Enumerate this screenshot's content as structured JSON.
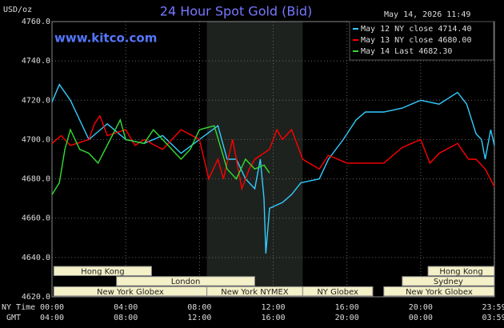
{
  "chart_data": {
    "type": "line",
    "title": "24 Hour Spot Gold (Bid)",
    "timestamp": "May 14, 2026 11:49",
    "y_label": "USD/oz",
    "source": "www.kitco.com",
    "x_label": "NY Time",
    "x2_label": "GMT",
    "xlim": [
      0,
      24
    ],
    "xticks": [
      {
        "value": 0,
        "label": "00:00"
      },
      {
        "value": 4,
        "label": "04:00"
      },
      {
        "value": 8,
        "label": "08:00"
      },
      {
        "value": 12,
        "label": "12:00"
      },
      {
        "value": 16,
        "label": "16:00"
      },
      {
        "value": 20,
        "label": "20:00"
      },
      {
        "value": 23.98,
        "label": "23:59"
      }
    ],
    "x2ticks": [
      {
        "value": 0,
        "label": "04:00"
      },
      {
        "value": 4,
        "label": "08:00"
      },
      {
        "value": 8,
        "label": "12:00"
      },
      {
        "value": 12,
        "label": "16:00"
      },
      {
        "value": 16,
        "label": "20:00"
      },
      {
        "value": 20,
        "label": "00:00"
      },
      {
        "value": 23.98,
        "label": "03:59"
      }
    ],
    "ylim": [
      4620,
      4760
    ],
    "yticks": [
      {
        "value": 4620,
        "label": "4620.0"
      },
      {
        "value": 4640,
        "label": "4640.0"
      },
      {
        "value": 4660,
        "label": "4660.0"
      },
      {
        "value": 4680,
        "label": "4680.0"
      },
      {
        "value": 4700,
        "label": "4700.0"
      },
      {
        "value": 4720,
        "label": "4720.0"
      },
      {
        "value": 4740,
        "label": "4740.0"
      },
      {
        "value": 4760,
        "label": "4760.0"
      }
    ],
    "grid": true,
    "legend": "top-right",
    "sessions": [
      {
        "label": "Hong Kong",
        "start": 0.1,
        "end": 5.4
      },
      {
        "label": "London",
        "start": 3.5,
        "end": 11
      },
      {
        "label": "New York Globex",
        "start": 0.1,
        "end": 8.4
      },
      {
        "label": "New York NYMEX",
        "start": 8.4,
        "end": 13.6
      },
      {
        "label": "NY Globex",
        "start": 13.6,
        "end": 17.4
      },
      {
        "label": "Hong Kong",
        "start": 20.4,
        "end": 24
      },
      {
        "label": "Sydney",
        "start": 19,
        "end": 24
      },
      {
        "label": "New York Globex",
        "start": 18,
        "end": 24
      }
    ],
    "series": [
      {
        "name": "May 12 NY close 4714.40",
        "color": "#33ccff",
        "x": [
          0,
          0.4,
          1,
          2,
          3,
          4,
          5,
          6,
          7,
          8,
          9,
          9.5,
          10,
          10.5,
          11,
          11.3,
          11.5,
          11.6,
          11.8,
          12.5,
          13,
          13.5,
          14.5,
          15,
          15.8,
          16.5,
          17,
          18,
          19,
          20,
          21,
          22,
          22.5,
          23,
          23.3,
          23.5,
          23.8,
          24
        ],
        "values": [
          4719,
          4728,
          4720,
          4700,
          4708,
          4700,
          4698,
          4702,
          4693,
          4700,
          4707,
          4690,
          4690,
          4680,
          4675,
          4690,
          4670,
          4642,
          4665,
          4668,
          4672,
          4678,
          4680,
          4690,
          4700,
          4710,
          4714,
          4714,
          4716,
          4720,
          4718,
          4724,
          4718,
          4703,
          4700,
          4690,
          4705,
          4697
        ]
      },
      {
        "name": "May 13 NY close 4680.00",
        "color": "#ff0000",
        "x": [
          0,
          0.5,
          1,
          2,
          2.3,
          2.6,
          3,
          4,
          4.5,
          5,
          6,
          7,
          8,
          8.5,
          9,
          9.3,
          9.8,
          10.3,
          10.7,
          11,
          11.8,
          12.2,
          12.5,
          13,
          13.6,
          14.5,
          15,
          16,
          18,
          19,
          20,
          20.5,
          21,
          22,
          22.6,
          23,
          23.5,
          24
        ],
        "values": [
          4698,
          4702,
          4697,
          4700,
          4708,
          4712,
          4702,
          4705,
          4697,
          4700,
          4695,
          4705,
          4700,
          4680,
          4690,
          4680,
          4700,
          4675,
          4685,
          4690,
          4695,
          4705,
          4700,
          4705,
          4690,
          4685,
          4692,
          4688,
          4688,
          4696,
          4700,
          4688,
          4693,
          4698,
          4690,
          4690,
          4685,
          4676
        ]
      },
      {
        "name": "May 14 Last 4682.30",
        "color": "#33dd33",
        "x": [
          0,
          0.4,
          0.7,
          1,
          1.5,
          2,
          2.5,
          3.7,
          4,
          5,
          5.5,
          6,
          7,
          7.5,
          8,
          8.8,
          9.5,
          10,
          10.5,
          11,
          11.5,
          11.8
        ],
        "values": [
          4672,
          4678,
          4695,
          4705,
          4695,
          4693,
          4688,
          4710,
          4700,
          4698,
          4705,
          4700,
          4690,
          4695,
          4705,
          4707,
          4685,
          4680,
          4690,
          4685,
          4687,
          4683
        ]
      }
    ]
  }
}
